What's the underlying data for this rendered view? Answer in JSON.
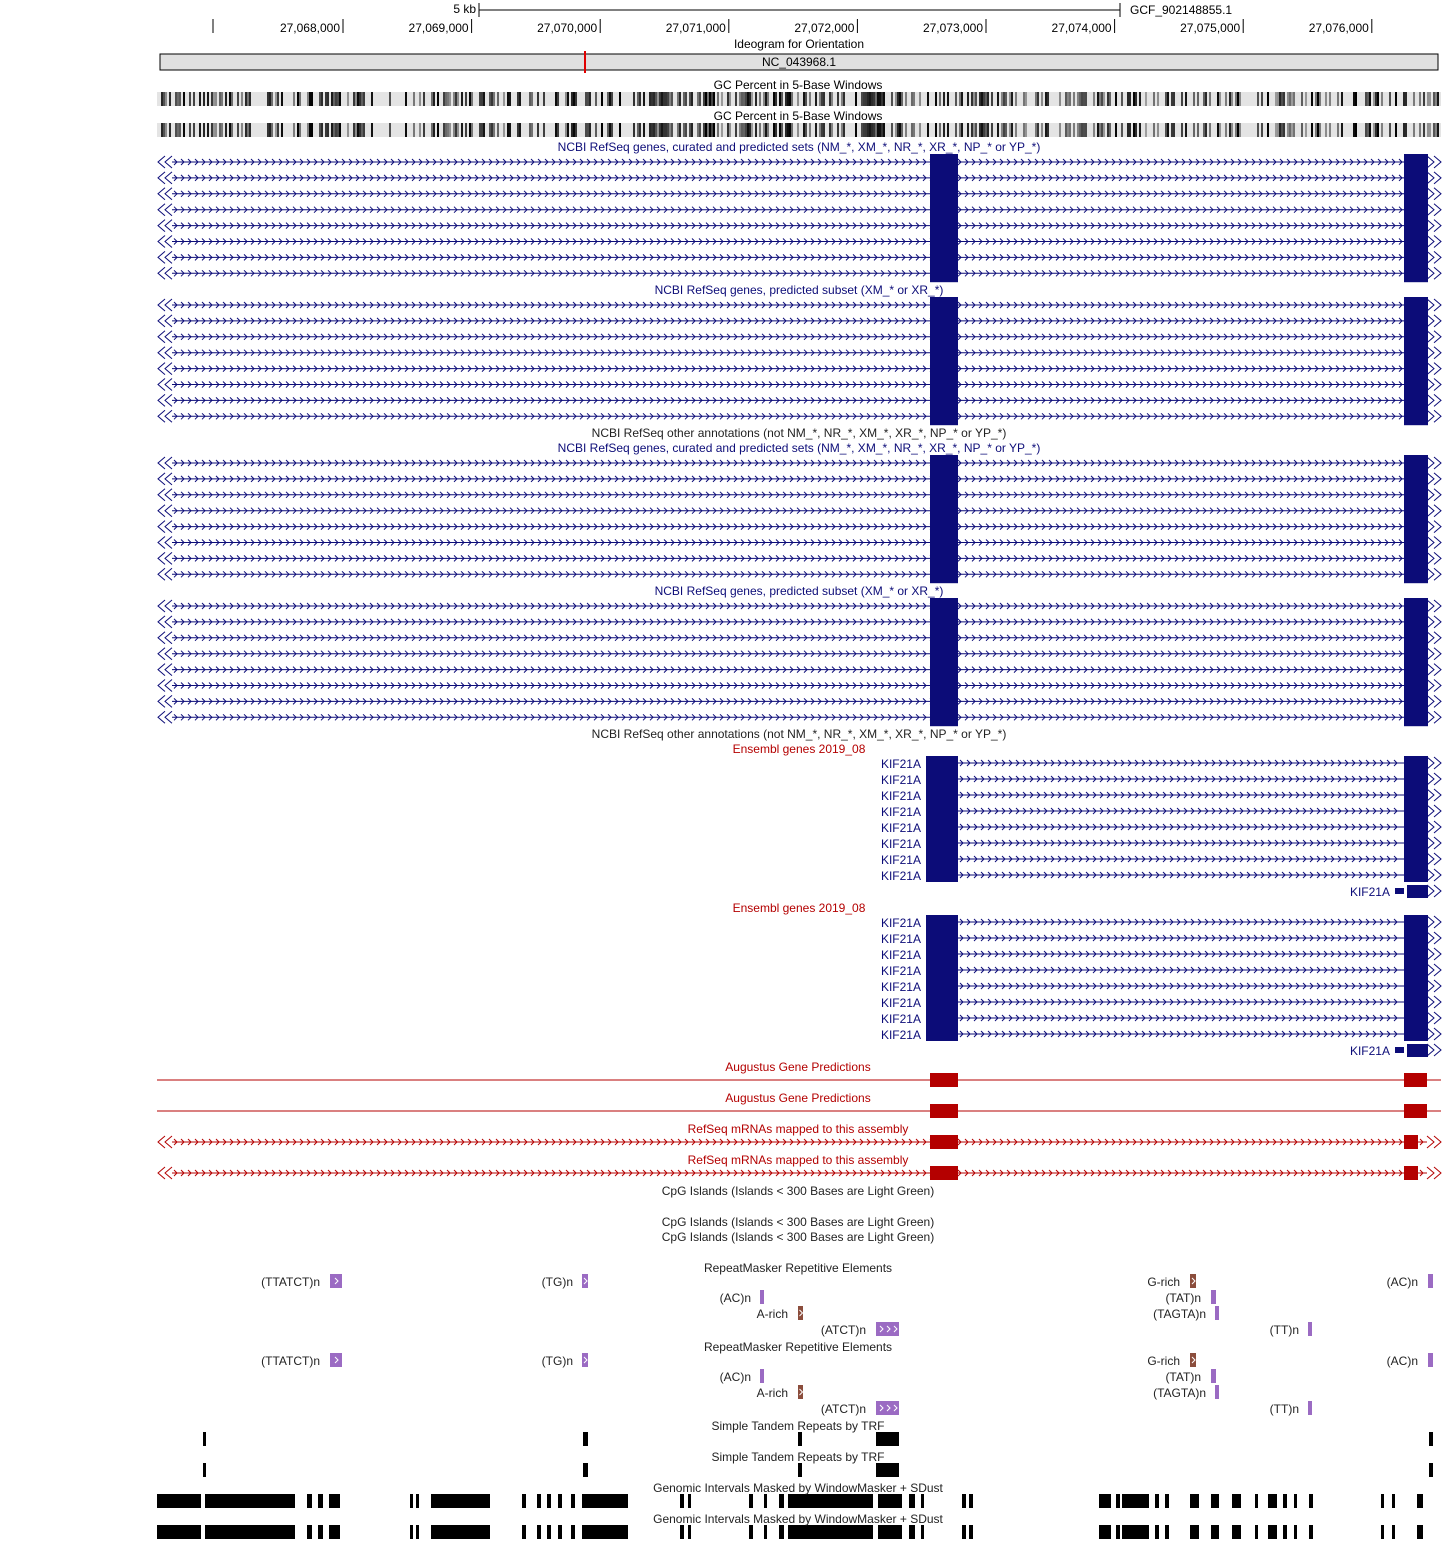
{
  "ruler": {
    "scale_label": "5 kb",
    "assembly": "GCF_902148855.1",
    "ticks": [
      "27,068,000",
      "27,069,000",
      "27,070,000",
      "27,071,000",
      "27,072,000",
      "27,073,000",
      "27,074,000",
      "27,075,000",
      "27,076,000"
    ]
  },
  "ideogram": {
    "title": "Ideogram for Orientation",
    "chrom": "NC_043968.1"
  },
  "gc": {
    "title": "GC Percent in 5-Base Windows"
  },
  "refseq": {
    "curated_title": "NCBI RefSeq genes, curated and predicted sets (NM_*, XM_*, NR_*, XR_*, NP_* or YP_*)",
    "predicted_title": "NCBI RefSeq genes, predicted subset (XM_* or XR_*)",
    "other_title": "NCBI RefSeq other annotations (not NM_*, NR_*, XM_*, XR_*, NP_* or YP_*)"
  },
  "ensembl": {
    "title": "Ensembl genes 2019_08",
    "gene": "KIF21A"
  },
  "augustus": {
    "title": "Augustus Gene Predictions"
  },
  "mrna": {
    "title": "RefSeq mRNAs mapped to this assembly"
  },
  "cpg": {
    "title": "CpG Islands (Islands < 300 Bases are Light Green)"
  },
  "rmsk": {
    "title": "RepeatMasker Repetitive Elements",
    "items": [
      {
        "label": "(TTATCT)n",
        "color": "#9b6bc3"
      },
      {
        "label": "(TG)n",
        "color": "#9b6bc3"
      },
      {
        "label": "(AC)n",
        "color": "#9b6bc3"
      },
      {
        "label": "A-rich",
        "color": "#8b4d3c"
      },
      {
        "label": "(ATCT)n",
        "color": "#9b6bc3"
      },
      {
        "label": "G-rich",
        "color": "#8b4d3c"
      },
      {
        "label": "(TAT)n",
        "color": "#9b6bc3"
      },
      {
        "label": "(TAGTA)n",
        "color": "#9b6bc3"
      },
      {
        "label": "(TT)n",
        "color": "#9b6bc3"
      },
      {
        "label": "(AC)n",
        "color": "#9b6bc3"
      }
    ]
  },
  "trf": {
    "title": "Simple Tandem Repeats by TRF"
  },
  "wm": {
    "title": "Genomic Intervals Masked by WindowMasker + SDust"
  },
  "colors": {
    "refseq": "#0c0c78",
    "augustus": "#b40000",
    "mrna": "#b40000",
    "rmsk_simple": "#9b6bc3",
    "rmsk_lowcomplex": "#8b4d3c",
    "ideogram_marker": "#e00000"
  }
}
